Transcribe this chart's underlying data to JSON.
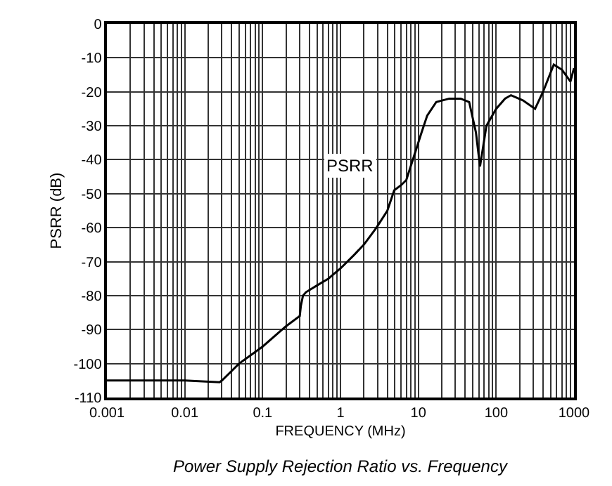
{
  "chart_data": {
    "type": "line",
    "xlabel": "FREQUENCY (MHz)",
    "ylabel": "PSRR (dB)",
    "annotations": [
      "PSRR",
      "Power Supply Rejection Ratio vs. Frequency"
    ],
    "log": "x",
    "grid": true,
    "legend": false,
    "marker": "none",
    "line_style": "solid",
    "xlim": [
      0.001,
      1000
    ],
    "xticks": [
      0.001,
      0.01,
      0.1,
      1,
      10,
      100,
      1000
    ],
    "ylim": [
      -110,
      0
    ],
    "yticks": [
      -110,
      -100,
      -90,
      -80,
      -70,
      -60,
      -50,
      -40,
      -30,
      -20,
      -10,
      0
    ],
    "series": [
      {
        "color": "#000000",
        "x": [
          0.001,
          0.01,
          0.028,
          0.03,
          0.05,
          0.1,
          0.2,
          0.3,
          0.31,
          0.33,
          0.36,
          0.5,
          0.7,
          1,
          1.5,
          2,
          2.9,
          4,
          4.9,
          6,
          7,
          8.5,
          11,
          13,
          17,
          25,
          35,
          45,
          55,
          62,
          75,
          100,
          130,
          155,
          220,
          316,
          400,
          550,
          700,
          900,
          1000
        ],
        "values": [
          -105,
          -105,
          -105.5,
          -105,
          -100,
          -95,
          -89,
          -86,
          -83,
          -80,
          -79,
          -77,
          -75,
          -72,
          -68,
          -65,
          -60,
          -55,
          -49,
          -47.5,
          -46,
          -40,
          -32,
          -27,
          -23,
          -22,
          -22,
          -23,
          -32,
          -42,
          -30,
          -25,
          -22,
          -21,
          -22.5,
          -25,
          -20,
          -12,
          -13.5,
          -17,
          -13
        ]
      }
    ]
  }
}
